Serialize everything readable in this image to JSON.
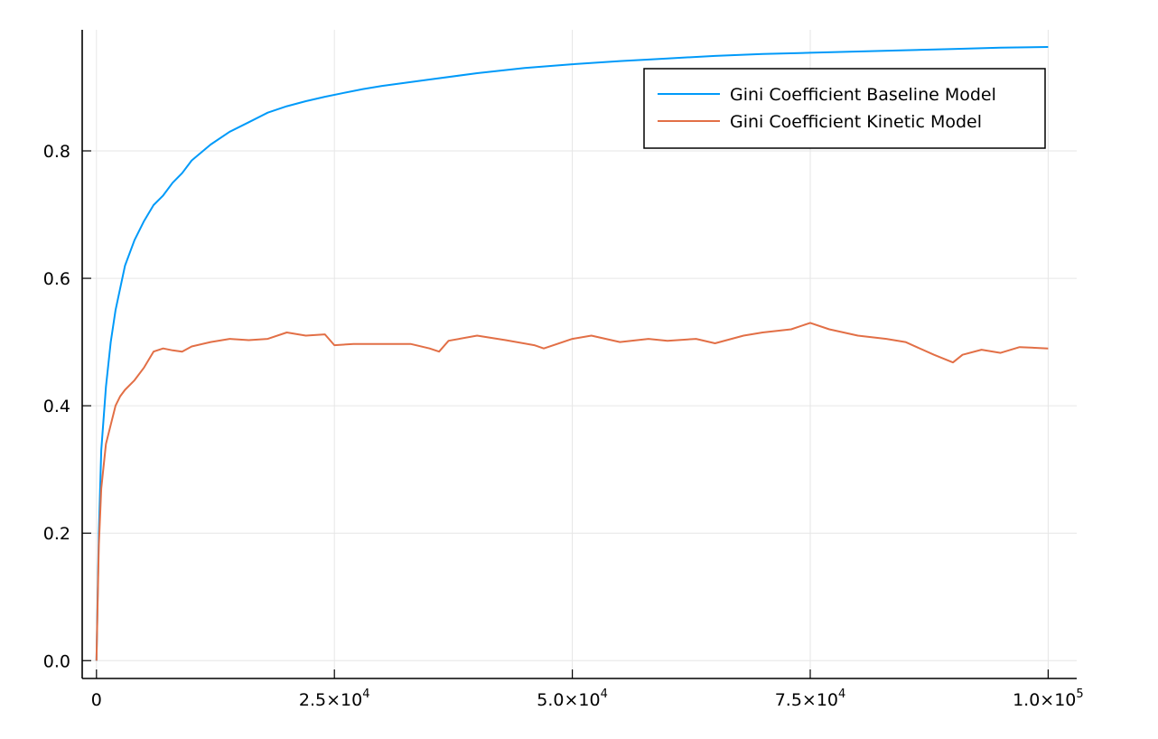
{
  "chart_data": {
    "type": "line",
    "title": "",
    "xlabel": "",
    "ylabel": "",
    "xlim": [
      -1500,
      103000
    ],
    "ylim": [
      -0.028,
      0.99
    ],
    "x_ticks": [
      {
        "value": 0,
        "base": "0",
        "exp": ""
      },
      {
        "value": 25000,
        "base": "2.5×10",
        "exp": "4"
      },
      {
        "value": 50000,
        "base": "5.0×10",
        "exp": "4"
      },
      {
        "value": 75000,
        "base": "7.5×10",
        "exp": "4"
      },
      {
        "value": 100000,
        "base": "1.0×10",
        "exp": "5"
      }
    ],
    "y_ticks": [
      {
        "value": 0.0,
        "label": "0.0"
      },
      {
        "value": 0.2,
        "label": "0.2"
      },
      {
        "value": 0.4,
        "label": "0.4"
      },
      {
        "value": 0.6,
        "label": "0.6"
      },
      {
        "value": 0.8,
        "label": "0.8"
      }
    ],
    "grid": true,
    "legend_position": "top-right",
    "series": [
      {
        "name": "Gini Coefficient Baseline Model",
        "color": "#009af9",
        "x": [
          0,
          250,
          500,
          1000,
          1500,
          2000,
          3000,
          4000,
          5000,
          6000,
          7000,
          8000,
          9000,
          10000,
          12000,
          14000,
          16000,
          18000,
          20000,
          22000,
          24000,
          26000,
          28000,
          30000,
          35000,
          40000,
          45000,
          50000,
          55000,
          60000,
          65000,
          70000,
          75000,
          80000,
          85000,
          90000,
          95000,
          100000
        ],
        "y": [
          0.0,
          0.2,
          0.33,
          0.43,
          0.5,
          0.55,
          0.62,
          0.66,
          0.69,
          0.715,
          0.73,
          0.75,
          0.765,
          0.785,
          0.81,
          0.83,
          0.845,
          0.86,
          0.87,
          0.878,
          0.885,
          0.891,
          0.897,
          0.902,
          0.912,
          0.922,
          0.93,
          0.936,
          0.941,
          0.945,
          0.949,
          0.952,
          0.954,
          0.956,
          0.958,
          0.96,
          0.962,
          0.963
        ]
      },
      {
        "name": "Gini Coefficient Kinetic Model",
        "color": "#e26f46",
        "x": [
          0,
          250,
          500,
          1000,
          1500,
          2000,
          2500,
          3000,
          4000,
          5000,
          6000,
          7000,
          8000,
          9000,
          10000,
          12000,
          14000,
          16000,
          18000,
          20000,
          22000,
          24000,
          25000,
          27000,
          30000,
          33000,
          35000,
          36000,
          37000,
          40000,
          43000,
          46000,
          47000,
          50000,
          52000,
          55000,
          58000,
          60000,
          63000,
          65000,
          68000,
          70000,
          73000,
          75000,
          77000,
          80000,
          83000,
          85000,
          88000,
          90000,
          91000,
          93000,
          95000,
          97000,
          100000
        ],
        "y": [
          0.0,
          0.18,
          0.27,
          0.34,
          0.37,
          0.4,
          0.415,
          0.425,
          0.44,
          0.46,
          0.485,
          0.49,
          0.487,
          0.485,
          0.493,
          0.5,
          0.505,
          0.503,
          0.505,
          0.515,
          0.51,
          0.512,
          0.495,
          0.497,
          0.497,
          0.497,
          0.49,
          0.485,
          0.502,
          0.51,
          0.503,
          0.495,
          0.49,
          0.505,
          0.51,
          0.5,
          0.505,
          0.502,
          0.505,
          0.498,
          0.51,
          0.515,
          0.52,
          0.53,
          0.52,
          0.51,
          0.505,
          0.5,
          0.48,
          0.468,
          0.48,
          0.488,
          0.483,
          0.492,
          0.49
        ]
      }
    ]
  }
}
